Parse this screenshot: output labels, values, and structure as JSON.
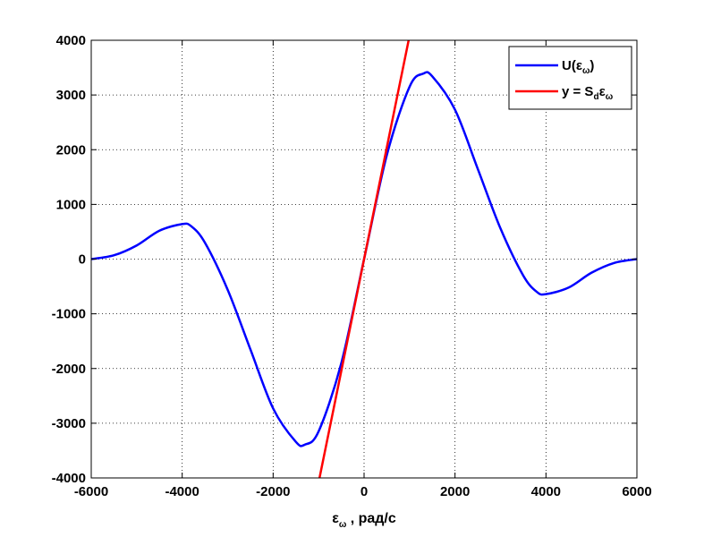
{
  "chart_data": {
    "type": "line",
    "title": "",
    "xlabel": {
      "main": "ε",
      "sub": "ω",
      "rest": " , рад/с"
    },
    "ylabel": "",
    "xlim": [
      -6000,
      6000
    ],
    "ylim": [
      -4000,
      4000
    ],
    "xticks": [
      "-6000",
      "-4000",
      "-2000",
      "0",
      "2000",
      "4000",
      "6000"
    ],
    "yticks": [
      "4000",
      "3000",
      "2000",
      "1000",
      "0",
      "-1000",
      "-2000",
      "-3000",
      "-4000"
    ],
    "grid": true,
    "legend_position": "top-right",
    "series": [
      {
        "legend": {
          "main": "U(ε",
          "sub": "ω",
          "tail": ")"
        },
        "color": "#0000ff",
        "x": [
          -6000,
          -5500,
          -5000,
          -4500,
          -4000,
          -3800,
          -3500,
          -3000,
          -2500,
          -2000,
          -1500,
          -1300,
          -1000,
          -500,
          0,
          500,
          1000,
          1300,
          1500,
          2000,
          2500,
          3000,
          3500,
          3800,
          4000,
          4500,
          5000,
          5500,
          6000
        ],
        "y": [
          0,
          70,
          250,
          520,
          640,
          600,
          300,
          -560,
          -1650,
          -2730,
          -3340,
          -3390,
          -3150,
          -1900,
          0,
          1900,
          3150,
          3390,
          3340,
          2730,
          1650,
          560,
          -300,
          -600,
          -640,
          -520,
          -250,
          -70,
          0
        ]
      },
      {
        "legend": {
          "main": "y = S",
          "sub1": "d",
          "mid": "ε",
          "sub2": "ω"
        },
        "color": "#ff0000",
        "x": [
          -980,
          980
        ],
        "y": [
          -4000,
          4000
        ]
      }
    ]
  }
}
